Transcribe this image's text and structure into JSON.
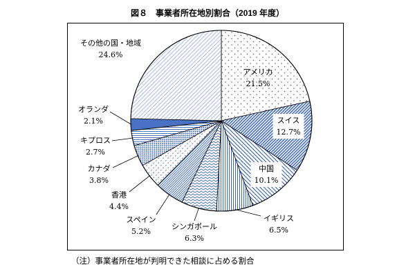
{
  "chart_data": {
    "type": "pie",
    "title": "図８　事業者所在地別割合（2019 年度）",
    "note": "（注）事業者所在地が判明できた相談に占める割合",
    "unit": "%",
    "slices": [
      {
        "label": "アメリカ",
        "value": 21.5,
        "fill": "dots"
      },
      {
        "label": "スイス",
        "value": 12.7,
        "fill": "hatch-up-dense"
      },
      {
        "label": "中国",
        "value": 10.1,
        "fill": "hatch-down"
      },
      {
        "label": "イギリス",
        "value": 6.5,
        "fill": "vertical-lines"
      },
      {
        "label": "シンガポール",
        "value": 6.3,
        "fill": "zigzag"
      },
      {
        "label": "スペイン",
        "value": 5.2,
        "fill": "hatch-up-fine"
      },
      {
        "label": "香港",
        "value": 4.4,
        "fill": "confetti"
      },
      {
        "label": "カナダ",
        "value": 3.8,
        "fill": "diamond-check"
      },
      {
        "label": "キプロス",
        "value": 2.7,
        "fill": "horizontal-lines"
      },
      {
        "label": "オランダ",
        "value": 2.1,
        "fill": "solid"
      },
      {
        "label": "その他の国・地域",
        "value": 24.6,
        "fill": "hatch-pale"
      }
    ],
    "colors": {
      "pattern": "#3a62b4",
      "solid": "#4a72c4",
      "pale": "#9fb4df",
      "dots": "#555555",
      "outline": "#000000"
    }
  }
}
